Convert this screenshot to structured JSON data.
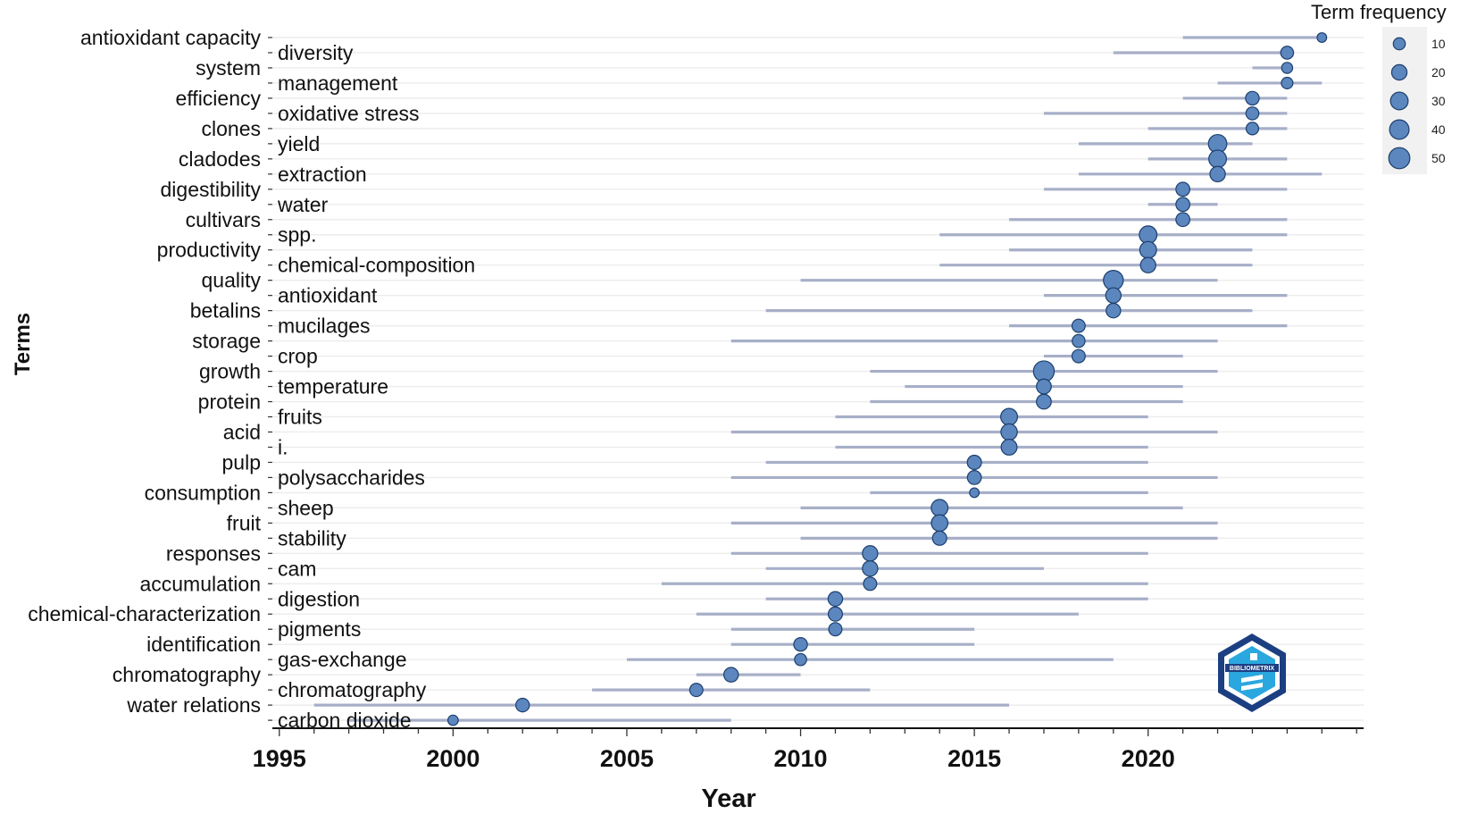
{
  "chart_data": {
    "type": "timeline-bubble",
    "title": "",
    "xlabel": "Year",
    "ylabel": "Terms",
    "xlim": [
      1994.8,
      2026.2
    ],
    "x_ticks": [
      {
        "label": "1995",
        "value": 1995
      },
      {
        "label": "2000",
        "value": 2000
      },
      {
        "label": "2005",
        "value": 2005
      },
      {
        "label": "2010",
        "value": 2010
      },
      {
        "label": "2015",
        "value": 2015
      },
      {
        "label": "2020",
        "value": 2020
      }
    ],
    "size_legend": {
      "title": "Term frequency",
      "values": [
        10,
        20,
        30,
        40,
        50
      ]
    },
    "watermark": "BIBLIOMETRIX",
    "terms": [
      {
        "term": "antioxidant capacity",
        "year_q1": 2021,
        "median_year": 2025,
        "year_q3": 2025,
        "frequency": 6
      },
      {
        "term": "diversity",
        "year_q1": 2019,
        "median_year": 2024,
        "year_q3": 2024,
        "frequency": 12
      },
      {
        "term": "system",
        "year_q1": 2023,
        "median_year": 2024,
        "year_q3": 2024,
        "frequency": 8
      },
      {
        "term": "management",
        "year_q1": 2022,
        "median_year": 2024,
        "year_q3": 2025,
        "frequency": 9
      },
      {
        "term": "efficiency",
        "year_q1": 2021,
        "median_year": 2023,
        "year_q3": 2024,
        "frequency": 14
      },
      {
        "term": "oxidative stress",
        "year_q1": 2017,
        "median_year": 2023,
        "year_q3": 2024,
        "frequency": 12
      },
      {
        "term": "clones",
        "year_q1": 2020,
        "median_year": 2023,
        "year_q3": 2024,
        "frequency": 11
      },
      {
        "term": "yield",
        "year_q1": 2018,
        "median_year": 2022,
        "year_q3": 2023,
        "frequency": 34
      },
      {
        "term": "cladodes",
        "year_q1": 2020,
        "median_year": 2022,
        "year_q3": 2024,
        "frequency": 30
      },
      {
        "term": "extraction",
        "year_q1": 2018,
        "median_year": 2022,
        "year_q3": 2025,
        "frequency": 20
      },
      {
        "term": "digestibility",
        "year_q1": 2017,
        "median_year": 2021,
        "year_q3": 2024,
        "frequency": 15
      },
      {
        "term": "water",
        "year_q1": 2020,
        "median_year": 2021,
        "year_q3": 2022,
        "frequency": 15
      },
      {
        "term": "cultivars",
        "year_q1": 2016,
        "median_year": 2021,
        "year_q3": 2024,
        "frequency": 15
      },
      {
        "term": "spp.",
        "year_q1": 2014,
        "median_year": 2020,
        "year_q3": 2024,
        "frequency": 30
      },
      {
        "term": "productivity",
        "year_q1": 2016,
        "median_year": 2020,
        "year_q3": 2023,
        "frequency": 26
      },
      {
        "term": "chemical-composition",
        "year_q1": 2014,
        "median_year": 2020,
        "year_q3": 2023,
        "frequency": 20
      },
      {
        "term": "quality",
        "year_q1": 2010,
        "median_year": 2019,
        "year_q3": 2022,
        "frequency": 42
      },
      {
        "term": "antioxidant",
        "year_q1": 2017,
        "median_year": 2019,
        "year_q3": 2024,
        "frequency": 20
      },
      {
        "term": "betalins",
        "year_q1": 2009,
        "median_year": 2019,
        "year_q3": 2023,
        "frequency": 17
      },
      {
        "term": "mucilages",
        "year_q1": 2016,
        "median_year": 2018,
        "year_q3": 2024,
        "frequency": 13
      },
      {
        "term": "storage",
        "year_q1": 2008,
        "median_year": 2018,
        "year_q3": 2022,
        "frequency": 12
      },
      {
        "term": "crop",
        "year_q1": 2017,
        "median_year": 2018,
        "year_q3": 2021,
        "frequency": 13
      },
      {
        "term": "growth",
        "year_q1": 2012,
        "median_year": 2017,
        "year_q3": 2022,
        "frequency": 48
      },
      {
        "term": "temperature",
        "year_q1": 2013,
        "median_year": 2017,
        "year_q3": 2021,
        "frequency": 18
      },
      {
        "term": "protein",
        "year_q1": 2012,
        "median_year": 2017,
        "year_q3": 2021,
        "frequency": 18
      },
      {
        "term": "fruits",
        "year_q1": 2011,
        "median_year": 2016,
        "year_q3": 2020,
        "frequency": 26
      },
      {
        "term": "acid",
        "year_q1": 2008,
        "median_year": 2016,
        "year_q3": 2022,
        "frequency": 24
      },
      {
        "term": "i.",
        "year_q1": 2011,
        "median_year": 2016,
        "year_q3": 2020,
        "frequency": 22
      },
      {
        "term": "pulp",
        "year_q1": 2009,
        "median_year": 2015,
        "year_q3": 2020,
        "frequency": 16
      },
      {
        "term": "polysaccharides",
        "year_q1": 2008,
        "median_year": 2015,
        "year_q3": 2022,
        "frequency": 15
      },
      {
        "term": "consumption",
        "year_q1": 2012,
        "median_year": 2015,
        "year_q3": 2020,
        "frequency": 6
      },
      {
        "term": "sheep",
        "year_q1": 2010,
        "median_year": 2014,
        "year_q3": 2021,
        "frequency": 26
      },
      {
        "term": "fruit",
        "year_q1": 2008,
        "median_year": 2014,
        "year_q3": 2022,
        "frequency": 25
      },
      {
        "term": "stability",
        "year_q1": 2010,
        "median_year": 2014,
        "year_q3": 2022,
        "frequency": 16
      },
      {
        "term": "responses",
        "year_q1": 2008,
        "median_year": 2012,
        "year_q3": 2020,
        "frequency": 20
      },
      {
        "term": "cam",
        "year_q1": 2009,
        "median_year": 2012,
        "year_q3": 2017,
        "frequency": 20
      },
      {
        "term": "accumulation",
        "year_q1": 2006,
        "median_year": 2012,
        "year_q3": 2020,
        "frequency": 13
      },
      {
        "term": "digestion",
        "year_q1": 2009,
        "median_year": 2011,
        "year_q3": 2020,
        "frequency": 17
      },
      {
        "term": "chemical-characterization",
        "year_q1": 2007,
        "median_year": 2011,
        "year_q3": 2018,
        "frequency": 16
      },
      {
        "term": "pigments",
        "year_q1": 2008,
        "median_year": 2011,
        "year_q3": 2015,
        "frequency": 13
      },
      {
        "term": "identification",
        "year_q1": 2008,
        "median_year": 2010,
        "year_q3": 2015,
        "frequency": 14
      },
      {
        "term": "gas-exchange",
        "year_q1": 2005,
        "median_year": 2010,
        "year_q3": 2019,
        "frequency": 10
      },
      {
        "term": "chromatography",
        "year_q1": 2007,
        "median_year": 2008,
        "year_q3": 2010,
        "frequency": 17
      },
      {
        "term": "chromatography",
        "year_q1": 2004,
        "median_year": 2007,
        "year_q3": 2012,
        "frequency": 13
      },
      {
        "term": "water relations",
        "year_q1": 1996,
        "median_year": 2002,
        "year_q3": 2016,
        "frequency": 14
      },
      {
        "term": "carbon dioxide",
        "year_q1": 1997,
        "median_year": 2000,
        "year_q3": 2008,
        "frequency": 7
      }
    ]
  }
}
